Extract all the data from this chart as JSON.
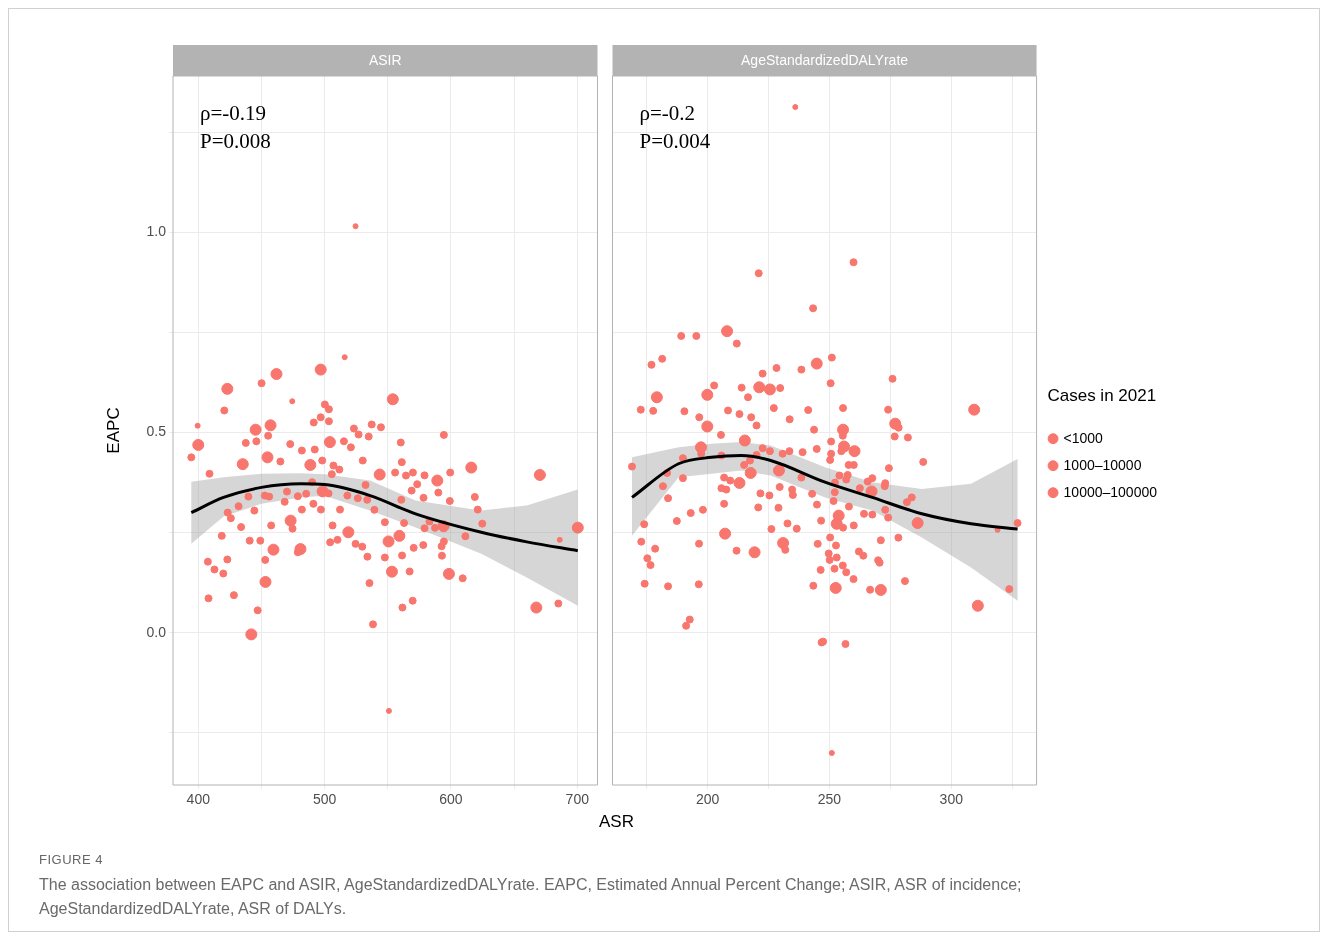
{
  "chart_data": [
    {
      "type": "scatter",
      "title": "ASIR",
      "xlabel": "ASR",
      "ylabel": "EAPC",
      "xlim": [
        380,
        716
      ],
      "xticks": [
        400,
        {
          "value": 450,
          "label": null
        },
        500,
        {
          "value": 550,
          "label": null
        },
        600,
        {
          "value": 650,
          "label": null
        },
        700
      ],
      "ylim": [
        -0.38,
        1.39
      ],
      "yticks": [
        {
          "value": -0.25,
          "label": null
        },
        {
          "value": 0,
          "label": "0.0"
        },
        {
          "value": 0.25,
          "label": null
        },
        0.5,
        {
          "value": 0.75,
          "label": null
        },
        {
          "value": 1,
          "label": "1.0"
        },
        {
          "value": 1.25,
          "label": null
        }
      ],
      "grid": true,
      "annotations": [
        "ρ=-0.19",
        "P=0.008",
        "FIGURE 4",
        "The association between EAPC and ASIR, AgeStandardizedDALYrate. EAPC, Estimated Annual Percent Change; ASIR, ASR of incidence; AgeStandardizedDALYrate, ASR of DALYs."
      ],
      "series": [
        {
          "type": "line",
          "color": "#000000",
          "x": [
            394.5,
            420,
            450,
            481,
            500,
            536,
            572,
            624,
            660,
            700.4
          ],
          "values": [
            0.3,
            0.338,
            0.363,
            0.372,
            0.37,
            0.3425,
            0.297,
            0.251,
            0.227,
            0.205
          ],
          "lower": [
            0.222,
            0.29,
            0.322,
            0.338,
            0.342,
            0.305,
            0.263,
            0.197,
            0.138,
            0.0675
          ],
          "upper": [
            0.377,
            0.388,
            0.397,
            0.398,
            0.396,
            0.38,
            0.33,
            0.305,
            0.318,
            0.358
          ]
        },
        {
          "color": "#f8766d",
          "x": [
            399.5,
            474.4,
            686.1,
            524.5,
            550.9,
            515.9
          ],
          "values": [
            0.517,
            0.578,
            0.232,
            1.015,
            -0.195,
            0.688
          ]
        },
        {
          "color": "#f8766d",
          "x": [
            450.1,
            420.6,
            500.2,
            503.4,
            496.9,
            491.4,
            503.4,
            455.3,
            446,
            437.6,
            394.5,
            408.9,
            465,
            472.8,
            482,
            492.2,
            498.1,
            515.3,
            520.8,
            507,
            511.7,
            523.2,
            526.9,
            530.2,
            537.3,
            534.9,
            544.6,
            505.7,
            431.9,
            439.7,
            444.4,
            452.7,
            456.1,
            468.4,
            470.2,
            478.8,
            482,
            485.4,
            491.1,
            497.1,
            503.1,
            490.1,
            512.2,
            518,
            526.3,
            533.7,
            539.4,
            532.4,
            423.3,
            425.8,
            433.9,
            457.7,
            474.6,
            506.3,
            418.6,
            440.7,
            449.1,
            478.8,
            504.4,
            510.2,
            524.5,
            529.8,
            533.9,
            407.6,
            412.8,
            419.8,
            423,
            453,
            428.2,
            408.1,
            447,
            535.5,
            538.3,
            594.4,
            560.3,
            561.1,
            599.4,
            555.8,
            564.4,
            569.9,
            579.1,
            573.3,
            590,
            568.9,
            578.3,
            560.7,
            599.1,
            618.9,
            621.2,
            579.1,
            587.4,
            583,
            624.8,
            547.7,
            562.9,
            570.5,
            578.1,
            592.6,
            594.4,
            592.9,
            611.4,
            567.3,
            609.3,
            547.7,
            561.3,
            561.6,
            569.7,
            685
          ],
          "values": [
            0.623,
            0.555,
            0.57,
            0.558,
            0.538,
            0.525,
            0.528,
            0.492,
            0.478,
            0.474,
            0.438,
            0.397,
            0.4275,
            0.471,
            0.455,
            0.4575,
            0.43,
            0.478,
            0.463,
            0.4175,
            0.4075,
            0.51,
            0.495,
            0.43,
            0.52,
            0.49,
            0.513,
            0.396,
            0.316,
            0.34,
            0.305,
            0.3425,
            0.34,
            0.327,
            0.3525,
            0.341,
            0.3075,
            0.347,
            0.322,
            0.3075,
            0.348,
            0.376,
            0.3075,
            0.3425,
            0.336,
            0.332,
            0.307,
            0.369,
            0.3,
            0.286,
            0.264,
            0.268,
            0.26,
            0.268,
            0.242,
            0.23,
            0.23,
            0.201,
            0.226,
            0.232,
            0.222,
            0.215,
            0.19,
            0.1775,
            0.158,
            0.148,
            0.183,
            0.182,
            0.094,
            0.086,
            0.056,
            0.124,
            0.021,
            0.494,
            0.475,
            0.426,
            0.4,
            0.4,
            0.3925,
            0.4,
            0.393,
            0.371,
            0.35,
            0.355,
            0.337,
            0.332,
            0.329,
            0.339,
            0.3075,
            0.261,
            0.262,
            0.278,
            0.2725,
            0.276,
            0.274,
            0.212,
            0.219,
            0.216,
            0.228,
            0.1925,
            0.241,
            0.153,
            0.136,
            0.188,
            0.193,
            0.063,
            0.08,
            0.073
          ]
        },
        {
          "color": "#f8766d",
          "x": [
            554,
            504.2,
            667.6,
            670.4,
            496.9,
            461.9,
            423,
            445.4,
            457.2,
            400,
            435.2,
            454.8,
            488.7,
            498.4,
            543.6,
            473.1,
            459.5,
            480.9,
            518.8,
            453.2,
            442,
            616.1,
            589.2,
            594.2,
            559.2,
            550.6,
            553.3,
            598.4,
            700.4
          ],
          "values": [
            0.583,
            0.476,
            0.063,
            0.394,
            0.657,
            0.646,
            0.609,
            0.507,
            0.518,
            0.469,
            0.421,
            0.438,
            0.419,
            0.353,
            0.395,
            0.28,
            0.2075,
            0.209,
            0.251,
            0.127,
            -0.004,
            0.4125,
            0.38,
            0.266,
            0.242,
            0.228,
            0.1525,
            0.147,
            0.2625
          ]
        }
      ]
    },
    {
      "type": "scatter",
      "title": "AgeStandardizedDALYrate",
      "xlim": [
        161,
        335
      ],
      "xticks": [
        {
          "value": 175,
          "label": null
        },
        200,
        {
          "value": 225,
          "label": null
        },
        250,
        {
          "value": 275,
          "label": null
        },
        300,
        {
          "value": 325,
          "label": null
        }
      ],
      "ylim": [
        -0.38,
        1.39
      ],
      "yticks": [
        -0.25,
        0,
        0.25,
        0.5,
        0.75,
        1,
        1.25
      ],
      "tick_labels": "x",
      "grid": true,
      "legend": "right",
      "legend_title": "Cases in 2021",
      "annotations": [
        "ρ=-0.2",
        "P=0.004"
      ],
      "series": [
        {
          "type": "line",
          "color": "#000000",
          "x": [
            169,
            188.1,
            201.6,
            213.8,
            225.9,
            248.2,
            267.6,
            287.9,
            308.1,
            327.2
          ],
          "values": [
            0.338,
            0.422,
            0.438,
            0.4425,
            0.43,
            0.376,
            0.338,
            0.297,
            0.272,
            0.259
          ],
          "lower": [
            0.2425,
            0.388,
            0.397,
            0.405,
            0.3925,
            0.338,
            0.305,
            0.238,
            0.163,
            0.08
          ],
          "upper": [
            0.438,
            0.463,
            0.472,
            0.476,
            0.4675,
            0.413,
            0.376,
            0.359,
            0.372,
            0.434
          ]
        },
        {
          "name": "<1000",
          "color": "#f8766d",
          "x": [
            236,
            319,
            251
          ],
          "values": [
            1.3125,
            0.257,
            -0.3
          ]
        },
        {
          "name": "1000–10000",
          "color": "#f8766d",
          "x": [
            259.9,
            243.3,
            221,
            189.2,
            195.4,
            212,
            177,
            181.4,
            172.6,
            177.7,
            190.5,
            202.7,
            196.6,
            208.4,
            213.1,
            214,
            216.6,
            217.9,
            220.1,
            222.6,
            228.3,
            229.8,
            227.2,
            233.7,
            238.5,
            241.3,
            243.7,
            205.5,
            197.4,
            189.9,
            169,
            183.4,
            189.9,
            181.7,
            183.8,
            205.7,
            217.4,
            220.1,
            222.6,
            225.6,
            230.8,
            233.6,
            239,
            244.8,
            215,
            238.5,
            206.8,
            209.3,
            229.6,
            234.7,
            235,
            225.4,
            221.7,
            205.7,
            207.7,
            206.8,
            220.8,
            229.1,
            242.9,
            244.9,
            198.1,
            193.1,
            187.4,
            174,
            226.2,
            232.8,
            236.6,
            246.6,
            172.8,
            178.5,
            175.3,
            176.6,
            196.5,
            211.9,
            231.9,
            245.2,
            246.4,
            174.2,
            183.8,
            196.4,
            243.4,
            192.7,
            191.2,
            246.8,
            251,
            250.5,
            275.9,
            255.6,
            274.1,
            278.4,
            276.8,
            282.2,
            255.5,
            254.9,
            250.7,
            250.7,
            250.3,
            257.9,
            260,
            288.5,
            274.4,
            254.1,
            257.5,
            256.9,
            252.3,
            265.7,
            267.6,
            272.9,
            272.7,
            262.5,
            252.2,
            251.7,
            258,
            283.8,
            281.8,
            272.9,
            264.2,
            267.6,
            255.6,
            260,
            274.1,
            327.2,
            250.3,
            252.7,
            249.7,
            253,
            250.1,
            262.1,
            263.9,
            271.1,
            278.3,
            270,
            270.6,
            255.5,
            252.1,
            256.9,
            259.9,
            266.7,
            281,
            323.8,
            256.6,
            247.4
          ],
          "values": [
            0.925,
            0.81,
            0.8975,
            0.741,
            0.741,
            0.722,
            0.669,
            0.684,
            0.557,
            0.554,
            0.553,
            0.6175,
            0.538,
            0.555,
            0.546,
            0.612,
            0.588,
            0.538,
            0.5175,
            0.647,
            0.661,
            0.611,
            0.561,
            0.533,
            0.657,
            0.556,
            0.507,
            0.494,
            0.447,
            0.436,
            0.415,
            0.399,
            0.386,
            0.366,
            0.336,
            0.4425,
            0.43,
            0.444,
            0.461,
            0.4535,
            0.447,
            0.4535,
            0.451,
            0.459,
            0.419,
            0.3875,
            0.3875,
            0.38,
            0.364,
            0.3575,
            0.344,
            0.343,
            0.348,
            0.361,
            0.3575,
            0.322,
            0.313,
            0.312,
            0.347,
            0.32,
            0.307,
            0.299,
            0.279,
            0.271,
            0.259,
            0.273,
            0.26,
            0.28,
            0.2275,
            0.21,
            0.186,
            0.169,
            0.2225,
            0.205,
            0.207,
            0.222,
            0.157,
            0.1225,
            0.116,
            0.121,
            0.1175,
            0.033,
            0.0175,
            -0.024,
            0.687,
            0.623,
            0.634,
            0.561,
            0.557,
            0.512,
            0.49,
            0.4875,
            0.492,
            0.4535,
            0.4775,
            0.447,
            0.4315,
            0.419,
            0.419,
            0.4265,
            0.411,
            0.3925,
            0.394,
            0.3825,
            0.375,
            0.3775,
            0.386,
            0.3735,
            0.366,
            0.361,
            0.351,
            0.329,
            0.315,
            0.338,
            0.326,
            0.307,
            0.297,
            0.295,
            0.2625,
            0.268,
            0.2875,
            0.274,
            0.238,
            0.218,
            0.198,
            0.188,
            0.182,
            0.203,
            0.1925,
            0.231,
            0.2375,
            0.181,
            0.175,
            0.168,
            0.16,
            0.151,
            0.134,
            0.1075,
            0.129,
            0.109,
            -0.028,
            -0.022
          ]
        },
        {
          "name": "10000–100000",
          "color": "#f8766d",
          "x": [
            244.8,
            221.2,
            309.4,
            310.9,
            208,
            179.2,
            199.9,
            199.9,
            225.6,
            215.3,
            197.3,
            217.7,
            229.3,
            213.1,
            207.2,
            219.3,
            231,
            277,
            255.6,
            256,
            260.3,
            267.3,
            253.8,
            253,
            286.2,
            252.6,
            271.1
          ],
          "values": [
            0.672,
            0.613,
            0.557,
            0.0675,
            0.753,
            0.588,
            0.594,
            0.515,
            0.6075,
            0.48,
            0.463,
            0.399,
            0.405,
            0.374,
            0.2475,
            0.201,
            0.224,
            0.522,
            0.507,
            0.465,
            0.4535,
            0.353,
            0.2925,
            0.272,
            0.274,
            0.112,
            0.107
          ]
        }
      ]
    }
  ]
}
